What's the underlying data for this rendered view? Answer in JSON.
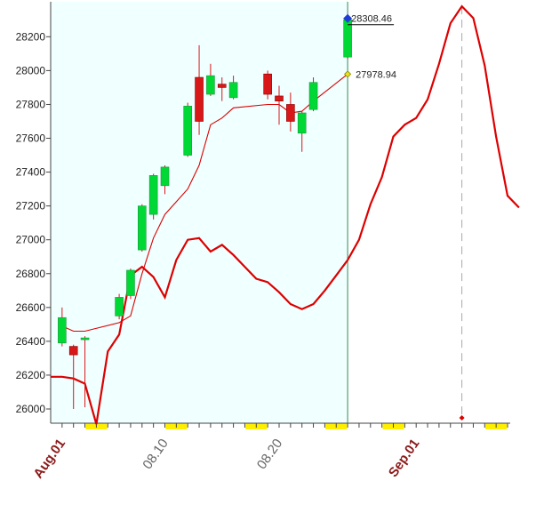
{
  "chart_data": {
    "type": "candlestick",
    "y_ticks": [
      26000,
      26200,
      26400,
      26600,
      26800,
      27000,
      27200,
      27400,
      27600,
      27800,
      28000,
      28200
    ],
    "x_labels": [
      {
        "text": "Aug.01",
        "day": 1,
        "color": "#8b1a1a"
      },
      {
        "text": "08.10",
        "day": 10,
        "color": "#666666"
      },
      {
        "text": "08.20",
        "day": 20,
        "color": "#666666"
      },
      {
        "text": "Sep.01",
        "day": 32,
        "color": "#8b1a1a"
      }
    ],
    "ylim": [
      25900,
      28380
    ],
    "xlim": [
      0,
      41
    ],
    "candles": [
      {
        "day": 1,
        "open": 26390,
        "high": 26600,
        "low": 26370,
        "close": 26540
      },
      {
        "day": 2,
        "open": 26370,
        "high": 26380,
        "low": 26000,
        "close": 26320
      },
      {
        "day": 3,
        "open": 26410,
        "high": 26430,
        "low": 26010,
        "close": 26420
      },
      {
        "day": 6,
        "open": 26550,
        "high": 26680,
        "low": 26530,
        "close": 26660
      },
      {
        "day": 7,
        "open": 26670,
        "high": 26830,
        "low": 26650,
        "close": 26820
      },
      {
        "day": 8,
        "open": 26940,
        "high": 27210,
        "low": 26930,
        "close": 27200
      },
      {
        "day": 9,
        "open": 27150,
        "high": 27390,
        "low": 27120,
        "close": 27380
      },
      {
        "day": 10,
        "open": 27320,
        "high": 27440,
        "low": 27270,
        "close": 27430
      },
      {
        "day": 12,
        "open": 27500,
        "high": 27810,
        "low": 27490,
        "close": 27790
      },
      {
        "day": 13,
        "open": 27960,
        "high": 28150,
        "low": 27620,
        "close": 27700
      },
      {
        "day": 14,
        "open": 27860,
        "high": 28040,
        "low": 27850,
        "close": 27970
      },
      {
        "day": 15,
        "open": 27920,
        "high": 27960,
        "low": 27820,
        "close": 27900
      },
      {
        "day": 16,
        "open": 27840,
        "high": 27970,
        "low": 27830,
        "close": 27930
      },
      {
        "day": 19,
        "open": 27980,
        "high": 28000,
        "low": 27830,
        "close": 27860
      },
      {
        "day": 20,
        "open": 27850,
        "high": 27910,
        "low": 27680,
        "close": 27820
      },
      {
        "day": 21,
        "open": 27800,
        "high": 27870,
        "low": 27640,
        "close": 27700
      },
      {
        "day": 22,
        "open": 27630,
        "high": 27760,
        "low": 27520,
        "close": 27750
      },
      {
        "day": 23,
        "open": 27770,
        "high": 27960,
        "low": 27760,
        "close": 27930
      },
      {
        "day": 26,
        "open": 28080,
        "high": 28308.46,
        "low": 28070,
        "close": 28300
      }
    ],
    "ma_short": [
      {
        "day": 1,
        "y": 26490
      },
      {
        "day": 2,
        "y": 26460
      },
      {
        "day": 3,
        "y": 26460
      },
      {
        "day": 6,
        "y": 26510
      },
      {
        "day": 7,
        "y": 26550
      },
      {
        "day": 8,
        "y": 26800
      },
      {
        "day": 9,
        "y": 27010
      },
      {
        "day": 10,
        "y": 27150
      },
      {
        "day": 12,
        "y": 27300
      },
      {
        "day": 13,
        "y": 27440
      },
      {
        "day": 14,
        "y": 27680
      },
      {
        "day": 15,
        "y": 27720
      },
      {
        "day": 16,
        "y": 27780
      },
      {
        "day": 19,
        "y": 27800
      },
      {
        "day": 20,
        "y": 27800
      },
      {
        "day": 21,
        "y": 27750
      },
      {
        "day": 22,
        "y": 27760
      },
      {
        "day": 23,
        "y": 27820
      },
      {
        "day": 26,
        "y": 27978.94
      }
    ],
    "ma_long": [
      {
        "day": 0,
        "y": 26190
      },
      {
        "day": 1,
        "y": 26190
      },
      {
        "day": 2,
        "y": 26180
      },
      {
        "day": 3,
        "y": 26150
      },
      {
        "day": 4,
        "y": 25910
      },
      {
        "day": 5,
        "y": 26340
      },
      {
        "day": 6,
        "y": 26440
      },
      {
        "day": 7,
        "y": 26790
      },
      {
        "day": 8,
        "y": 26840
      },
      {
        "day": 9,
        "y": 26780
      },
      {
        "day": 10,
        "y": 26660
      },
      {
        "day": 11,
        "y": 26880
      },
      {
        "day": 12,
        "y": 27000
      },
      {
        "day": 13,
        "y": 27010
      },
      {
        "day": 14,
        "y": 26930
      },
      {
        "day": 15,
        "y": 26970
      },
      {
        "day": 16,
        "y": 26910
      },
      {
        "day": 17,
        "y": 26840
      },
      {
        "day": 18,
        "y": 26770
      },
      {
        "day": 19,
        "y": 26750
      },
      {
        "day": 20,
        "y": 26690
      },
      {
        "day": 21,
        "y": 26620
      },
      {
        "day": 22,
        "y": 26590
      },
      {
        "day": 23,
        "y": 26620
      },
      {
        "day": 24,
        "y": 26700
      },
      {
        "day": 25,
        "y": 26790
      },
      {
        "day": 26,
        "y": 26880
      },
      {
        "day": 27,
        "y": 27000
      },
      {
        "day": 28,
        "y": 27210
      },
      {
        "day": 29,
        "y": 27370
      },
      {
        "day": 30,
        "y": 27610
      },
      {
        "day": 31,
        "y": 27680
      },
      {
        "day": 32,
        "y": 27720
      },
      {
        "day": 33,
        "y": 27830
      },
      {
        "day": 34,
        "y": 28040
      },
      {
        "day": 35,
        "y": 28280
      },
      {
        "day": 36,
        "y": 28380
      },
      {
        "day": 37,
        "y": 28310
      },
      {
        "day": 38,
        "y": 28030
      },
      {
        "day": 39,
        "y": 27610
      },
      {
        "day": 40,
        "y": 27260
      },
      {
        "day": 41,
        "y": 27190
      }
    ],
    "annotations": {
      "high": {
        "day": 26,
        "value": 28308.46,
        "label": "28308.46"
      },
      "ma_last": {
        "day": 26,
        "value": 27978.94,
        "label": "27978.94"
      }
    },
    "shaded_range": [
      0,
      26
    ],
    "peak_marker_day": 36,
    "weekend_markers": [
      4,
      11,
      18,
      25,
      30,
      39
    ],
    "colors": {
      "up": "#00d836",
      "down": "#d81818",
      "line": "#dd0000",
      "shade": "#f0ffff",
      "weekend": "#ffee00"
    }
  }
}
